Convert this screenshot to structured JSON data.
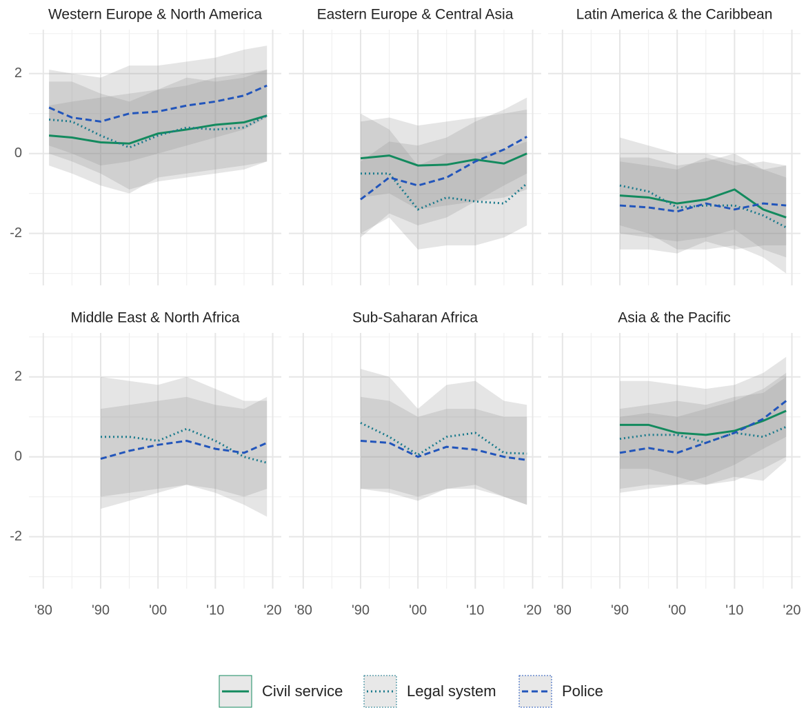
{
  "chart_data": [
    {
      "type": "line",
      "title": "Western Europe & North America",
      "x": [
        1981,
        1985,
        1990,
        1995,
        2000,
        2005,
        2010,
        2015,
        2019
      ],
      "xlim": [
        1977.5,
        2021.5
      ],
      "ylim": [
        -3.3,
        3.1
      ],
      "xticks": [
        {
          "value": 1980,
          "label": "'80"
        },
        {
          "value": 1990,
          "label": "'90"
        },
        {
          "value": 2000,
          "label": "'00"
        },
        {
          "value": 2010,
          "label": "'10"
        },
        {
          "value": 2020,
          "label": "'20"
        }
      ],
      "yticks": [
        -2,
        0,
        2
      ],
      "grid": true,
      "series": [
        {
          "name": "Civil service",
          "color": "#138a5e",
          "dash": "solid",
          "values": [
            0.45,
            0.4,
            0.28,
            0.25,
            0.5,
            0.6,
            0.72,
            0.78,
            0.95
          ],
          "lower": [
            -0.3,
            -0.5,
            -0.8,
            -1.0,
            -0.6,
            -0.5,
            -0.4,
            -0.3,
            -0.2
          ],
          "upper": [
            1.2,
            1.3,
            1.4,
            1.5,
            1.6,
            1.7,
            1.9,
            2.0,
            2.1
          ]
        },
        {
          "name": "Legal system",
          "color": "#1a7a8c",
          "dash": "dotted",
          "values": [
            0.85,
            0.8,
            0.45,
            0.15,
            0.45,
            0.65,
            0.6,
            0.65,
            0.95
          ],
          "lower": [
            0.0,
            -0.2,
            -0.5,
            -0.9,
            -0.7,
            -0.6,
            -0.5,
            -0.4,
            -0.2
          ],
          "upper": [
            1.8,
            1.8,
            1.5,
            1.3,
            1.6,
            1.9,
            1.8,
            1.9,
            2.1
          ]
        },
        {
          "name": "Police",
          "color": "#2255bb",
          "dash": "dashed",
          "values": [
            1.15,
            0.9,
            0.8,
            1.0,
            1.05,
            1.2,
            1.3,
            1.45,
            1.7
          ],
          "lower": [
            0.2,
            0.0,
            -0.3,
            -0.2,
            0.0,
            0.2,
            0.4,
            0.6,
            0.9
          ],
          "upper": [
            2.1,
            2.0,
            1.9,
            2.2,
            2.2,
            2.3,
            2.4,
            2.6,
            2.7
          ]
        }
      ]
    },
    {
      "type": "line",
      "title": "Eastern Europe & Central Asia",
      "x": [
        1990,
        1995,
        2000,
        2005,
        2010,
        2015,
        2019
      ],
      "xlim": [
        1977.5,
        2021.5
      ],
      "ylim": [
        -3.3,
        3.1
      ],
      "xticks": [
        {
          "value": 1980,
          "label": "'80"
        },
        {
          "value": 1990,
          "label": "'90"
        },
        {
          "value": 2000,
          "label": "'00"
        },
        {
          "value": 2010,
          "label": "'10"
        },
        {
          "value": 2020,
          "label": "'20"
        }
      ],
      "yticks": [
        -2,
        0,
        2
      ],
      "grid": true,
      "series": [
        {
          "color": "#138a5e",
          "dash": "solid",
          "values": [
            -0.12,
            -0.05,
            -0.3,
            -0.28,
            -0.15,
            -0.25,
            0.0
          ],
          "lower": [
            -1.1,
            -1.0,
            -1.4,
            -1.3,
            -1.2,
            -1.1,
            -0.9
          ],
          "upper": [
            0.8,
            0.9,
            0.7,
            0.8,
            0.9,
            1.0,
            1.1
          ]
        },
        {
          "color": "#1a7a8c",
          "dash": "dotted",
          "values": [
            -0.5,
            -0.5,
            -1.4,
            -1.1,
            -1.2,
            -1.25,
            -0.75
          ],
          "lower": [
            -2.0,
            -1.6,
            -2.4,
            -2.3,
            -2.3,
            -2.1,
            -1.8
          ],
          "upper": [
            1.0,
            0.6,
            -0.3,
            0.0,
            0.0,
            0.1,
            0.3
          ]
        },
        {
          "color": "#2255bb",
          "dash": "dashed",
          "values": [
            -1.15,
            -0.6,
            -0.8,
            -0.6,
            -0.2,
            0.1,
            0.42
          ],
          "lower": [
            -2.1,
            -1.5,
            -1.8,
            -1.6,
            -1.2,
            -0.8,
            -0.5
          ],
          "upper": [
            -0.2,
            0.3,
            0.2,
            0.4,
            0.8,
            1.1,
            1.4
          ]
        }
      ]
    },
    {
      "type": "line",
      "title": "Latin America & the Caribbean",
      "x": [
        1990,
        1995,
        2000,
        2005,
        2010,
        2015,
        2019
      ],
      "xlim": [
        1977.5,
        2021.5
      ],
      "ylim": [
        -3.3,
        3.1
      ],
      "xticks": [
        {
          "value": 1980,
          "label": "'80"
        },
        {
          "value": 1990,
          "label": "'90"
        },
        {
          "value": 2000,
          "label": "'00"
        },
        {
          "value": 2010,
          "label": "'10"
        },
        {
          "value": 2020,
          "label": "'20"
        }
      ],
      "yticks": [
        -2,
        0,
        2
      ],
      "grid": true,
      "series": [
        {
          "color": "#138a5e",
          "dash": "solid",
          "values": [
            -1.05,
            -1.1,
            -1.25,
            -1.15,
            -0.9,
            -1.4,
            -1.6
          ],
          "lower": [
            -2.0,
            -2.1,
            -2.2,
            -2.1,
            -1.9,
            -2.4,
            -2.6
          ],
          "upper": [
            -0.1,
            -0.1,
            -0.3,
            -0.2,
            0.0,
            -0.4,
            -0.6
          ]
        },
        {
          "color": "#1a7a8c",
          "dash": "dotted",
          "values": [
            -0.8,
            -0.95,
            -1.35,
            -1.3,
            -1.3,
            -1.55,
            -1.85
          ],
          "lower": [
            -1.8,
            -2.0,
            -2.4,
            -2.4,
            -2.3,
            -2.6,
            -3.0
          ],
          "upper": [
            0.4,
            0.2,
            0.0,
            0.0,
            -0.2,
            -0.4,
            -0.3
          ]
        },
        {
          "color": "#2255bb",
          "dash": "dashed",
          "values": [
            -1.3,
            -1.35,
            -1.45,
            -1.25,
            -1.4,
            -1.25,
            -1.3
          ],
          "lower": [
            -2.4,
            -2.4,
            -2.5,
            -2.2,
            -2.4,
            -2.3,
            -2.3
          ],
          "upper": [
            -0.2,
            -0.3,
            -0.4,
            -0.1,
            -0.3,
            -0.2,
            -0.3
          ]
        }
      ]
    },
    {
      "type": "line",
      "title": "Middle East & North Africa",
      "x": [
        1990,
        1995,
        2000,
        2005,
        2010,
        2015,
        2019
      ],
      "xlim": [
        1977.5,
        2021.5
      ],
      "ylim": [
        -3.3,
        3.1
      ],
      "xticks": [
        {
          "value": 1980,
          "label": "'80"
        },
        {
          "value": 1990,
          "label": "'90"
        },
        {
          "value": 2000,
          "label": "'00"
        },
        {
          "value": 2010,
          "label": "'10"
        },
        {
          "value": 2020,
          "label": "'20"
        }
      ],
      "yticks": [
        -2,
        0,
        2
      ],
      "grid": true,
      "series": [
        {
          "color": "#1a7a8c",
          "dash": "dotted",
          "values": [
            0.5,
            0.5,
            0.4,
            0.7,
            0.4,
            0.0,
            -0.15
          ],
          "lower": [
            -1.3,
            -1.1,
            -0.9,
            -0.7,
            -0.9,
            -1.2,
            -1.5
          ],
          "upper": [
            2.0,
            1.9,
            1.8,
            2.0,
            1.7,
            1.4,
            1.4
          ]
        },
        {
          "color": "#2255bb",
          "dash": "dashed",
          "values": [
            -0.05,
            0.15,
            0.3,
            0.4,
            0.2,
            0.1,
            0.35
          ],
          "lower": [
            -1.0,
            -0.9,
            -0.8,
            -0.7,
            -0.8,
            -1.0,
            -0.8
          ],
          "upper": [
            1.2,
            1.3,
            1.4,
            1.5,
            1.3,
            1.2,
            1.5
          ]
        }
      ]
    },
    {
      "type": "line",
      "title": "Sub-Saharan Africa",
      "x": [
        1990,
        1995,
        2000,
        2005,
        2010,
        2015,
        2019
      ],
      "xlim": [
        1977.5,
        2021.5
      ],
      "ylim": [
        -3.3,
        3.1
      ],
      "xticks": [
        {
          "value": 1980,
          "label": "'80"
        },
        {
          "value": 1990,
          "label": "'90"
        },
        {
          "value": 2000,
          "label": "'00"
        },
        {
          "value": 2010,
          "label": "'10"
        },
        {
          "value": 2020,
          "label": "'20"
        }
      ],
      "yticks": [
        -2,
        0,
        2
      ],
      "grid": true,
      "series": [
        {
          "color": "#1a7a8c",
          "dash": "dotted",
          "values": [
            0.85,
            0.5,
            0.05,
            0.5,
            0.6,
            0.1,
            0.08
          ],
          "lower": [
            -0.8,
            -0.9,
            -1.1,
            -0.8,
            -0.7,
            -1.0,
            -1.2
          ],
          "upper": [
            2.2,
            2.0,
            1.2,
            1.8,
            1.9,
            1.4,
            1.3
          ]
        },
        {
          "color": "#2255bb",
          "dash": "dashed",
          "values": [
            0.4,
            0.35,
            0.0,
            0.25,
            0.18,
            0.0,
            -0.08
          ],
          "lower": [
            -0.8,
            -0.8,
            -1.0,
            -0.8,
            -0.8,
            -1.0,
            -1.2
          ],
          "upper": [
            1.5,
            1.4,
            1.0,
            1.2,
            1.2,
            1.0,
            1.0
          ]
        }
      ]
    },
    {
      "type": "line",
      "title": "Asia & the Pacific",
      "x": [
        1990,
        1995,
        2000,
        2005,
        2010,
        2015,
        2019
      ],
      "xlim": [
        1977.5,
        2021.5
      ],
      "ylim": [
        -3.3,
        3.1
      ],
      "xticks": [
        {
          "value": 1980,
          "label": "'80"
        },
        {
          "value": 1990,
          "label": "'90"
        },
        {
          "value": 2000,
          "label": "'00"
        },
        {
          "value": 2010,
          "label": "'10"
        },
        {
          "value": 2020,
          "label": "'20"
        }
      ],
      "yticks": [
        -2,
        0,
        2
      ],
      "grid": true,
      "series": [
        {
          "color": "#138a5e",
          "dash": "solid",
          "values": [
            0.8,
            0.8,
            0.6,
            0.55,
            0.65,
            0.9,
            1.15
          ],
          "lower": [
            -0.9,
            -0.8,
            -0.7,
            -0.7,
            -0.6,
            -0.3,
            0.0
          ],
          "upper": [
            1.9,
            1.9,
            1.8,
            1.7,
            1.8,
            2.1,
            2.5
          ]
        },
        {
          "color": "#1a7a8c",
          "dash": "dotted",
          "values": [
            0.45,
            0.55,
            0.55,
            0.35,
            0.6,
            0.5,
            0.75
          ],
          "lower": [
            -0.3,
            -0.3,
            -0.5,
            -0.7,
            -0.5,
            -0.6,
            -0.1
          ],
          "upper": [
            1.2,
            1.3,
            1.4,
            1.3,
            1.5,
            1.6,
            2.0
          ]
        },
        {
          "color": "#2255bb",
          "dash": "dashed",
          "values": [
            0.1,
            0.22,
            0.1,
            0.35,
            0.6,
            0.95,
            1.4
          ],
          "lower": [
            -0.8,
            -0.7,
            -0.7,
            -0.5,
            -0.2,
            0.2,
            0.5
          ],
          "upper": [
            1.0,
            1.1,
            1.0,
            1.2,
            1.4,
            1.7,
            2.1
          ]
        }
      ]
    }
  ]
}
